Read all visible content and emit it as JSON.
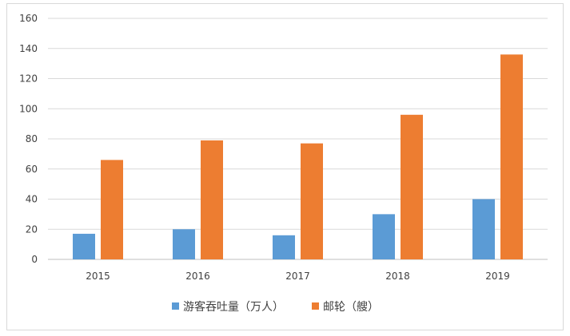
{
  "chart_data": {
    "type": "bar",
    "categories": [
      "2015",
      "2016",
      "2017",
      "2018",
      "2019"
    ],
    "series": [
      {
        "name": "游客吞吐量（万人）",
        "values": [
          17,
          20,
          16,
          30,
          40
        ],
        "color": "#5b9bd5"
      },
      {
        "name": "邮轮（艘）",
        "values": [
          66,
          79,
          77,
          96,
          136
        ],
        "color": "#ed7d31"
      }
    ],
    "ylim": [
      0,
      160
    ],
    "yticks": [
      0,
      20,
      40,
      60,
      80,
      100,
      120,
      140,
      160
    ],
    "grid": true,
    "legend": "bottom"
  }
}
